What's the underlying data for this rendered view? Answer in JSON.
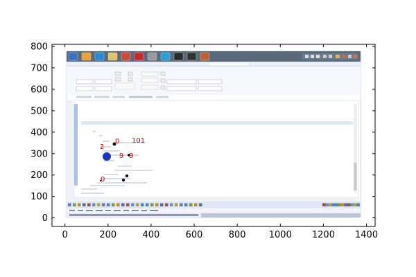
{
  "plot": {
    "x_ticks": [
      "0",
      "200",
      "400",
      "600",
      "800",
      "1000",
      "1200",
      "1400"
    ],
    "y_ticks": [
      "0",
      "100",
      "200",
      "300",
      "400",
      "500",
      "600",
      "700",
      "800"
    ],
    "xlim": [
      -60,
      1440
    ],
    "ylim": [
      -40,
      810
    ]
  },
  "screenshot": {
    "taskbar_icons": [
      "window-icon",
      "media-icon",
      "browser-icon",
      "folder-icon",
      "chrome-icon",
      "filezilla-icon",
      "apps-icon",
      "firefox-icon",
      "terminal-icon",
      "console-icon",
      "profile-icon"
    ],
    "status_annotations": {
      "red_label_1": "0",
      "red_label_2": "101",
      "red_label_3": "2",
      "red_label_4": "9",
      "red_label_5": "9",
      "red_label_6": "0"
    }
  },
  "colors": {
    "taskbar": "#5b6a7a",
    "toolbar_bg": "#dfe7f3",
    "editor_bg": "#ffffff",
    "highlight": "#dbe8f7",
    "sidebar_strip": "#a9c4ea",
    "marker_blue": "#1a32c8",
    "marker_dark": "#111111"
  }
}
